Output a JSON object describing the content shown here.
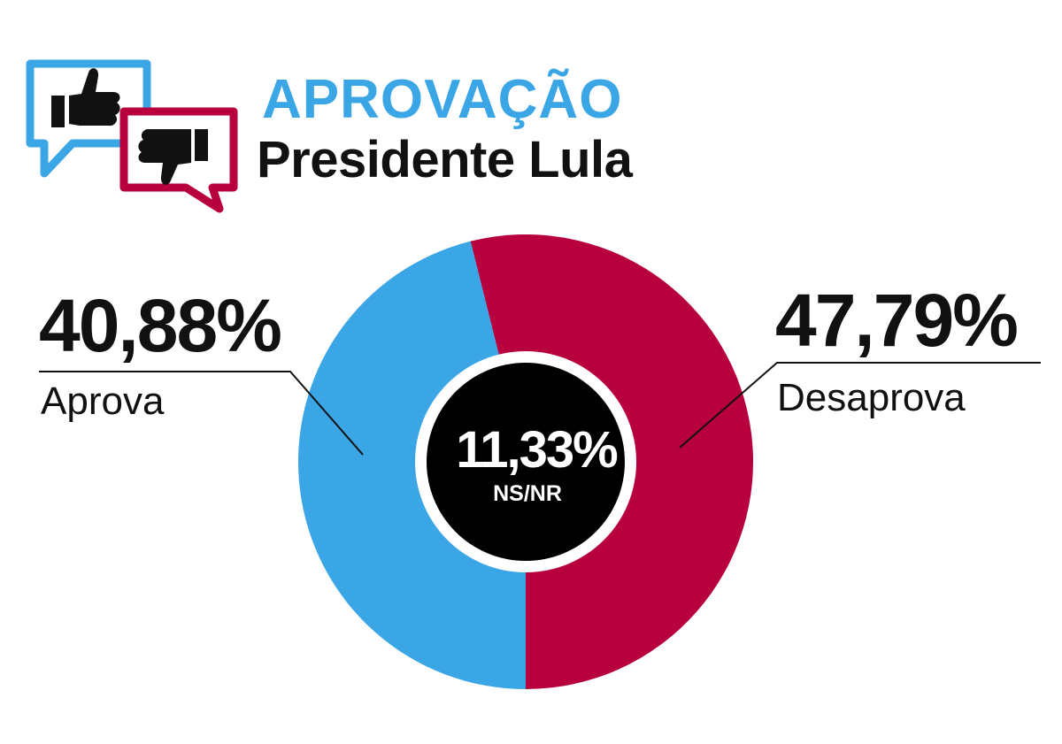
{
  "header": {
    "title": "APROVAÇÃO",
    "subtitle": "Presidente Lula"
  },
  "colors": {
    "approve": "#3ba6e6",
    "disapprove": "#b8003f",
    "undecided": "#000000",
    "title_accent": "#3ba6e6"
  },
  "icons": [
    "thumbs-up-icon",
    "thumbs-down-icon"
  ],
  "chart_data": {
    "type": "pie",
    "style": "donut",
    "slices": [
      {
        "label": "Aprova",
        "value": 40.88,
        "display": "40,88%",
        "color": "#3ba6e6"
      },
      {
        "label": "Desaprova",
        "value": 47.79,
        "display": "47,79%",
        "color": "#b8003f"
      },
      {
        "label": "NS/NR",
        "value": 11.33,
        "display": "11,33%",
        "color": "#000000"
      }
    ],
    "center": {
      "value": "11,33%",
      "label": "NS/NR"
    }
  }
}
